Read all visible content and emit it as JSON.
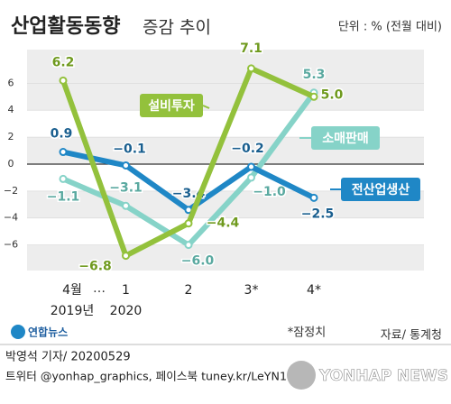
{
  "chart_data": {
    "type": "line",
    "title": "산업활동동향",
    "subtitle": "증감 추이",
    "unit": "단위 : % (전월 대비)",
    "categories": [
      "4월",
      "1",
      "2",
      "3*",
      "4*"
    ],
    "category_years": [
      "2019년",
      "2020",
      null,
      null,
      null
    ],
    "category_gap": "…",
    "series": [
      {
        "name": "설비투자",
        "color": "#93c13c",
        "values": [
          6.2,
          -6.8,
          -4.4,
          7.1,
          5.0
        ],
        "value_labels": [
          "6.2",
          "−6.8",
          "−4.4",
          "7.1",
          "5.0"
        ]
      },
      {
        "name": "소매판매",
        "color": "#86d3c8",
        "values": [
          -1.1,
          -3.1,
          -6.0,
          -1.0,
          5.3
        ],
        "value_labels": [
          "−1.1",
          "−3.1",
          "−6.0",
          "−1.0",
          "5.3"
        ]
      },
      {
        "name": "전산업생산",
        "color": "#1f87c6",
        "values": [
          0.9,
          -0.1,
          -3.4,
          -0.2,
          -2.5
        ],
        "value_labels": [
          "0.9",
          "−0.1",
          "−3.4",
          "−0.2",
          "−2.5"
        ]
      }
    ],
    "ylim": [
      -7.9,
      8.5
    ],
    "yticks": [
      6,
      4,
      2,
      0,
      {
        "value": -2,
        "label": "−2"
      },
      {
        "value": -4,
        "label": "−4"
      },
      {
        "value": -6,
        "label": "−6"
      }
    ],
    "grid": true,
    "note": "*잠정치",
    "source": "자료/ 통계청",
    "logo": "연합뉴스",
    "credit": "박영석 기자/ 20200529",
    "social": "트위터 @yonhap_graphics, 페이스북 tuney.kr/LeYN1",
    "watermark": "YONHAP NEWS"
  }
}
